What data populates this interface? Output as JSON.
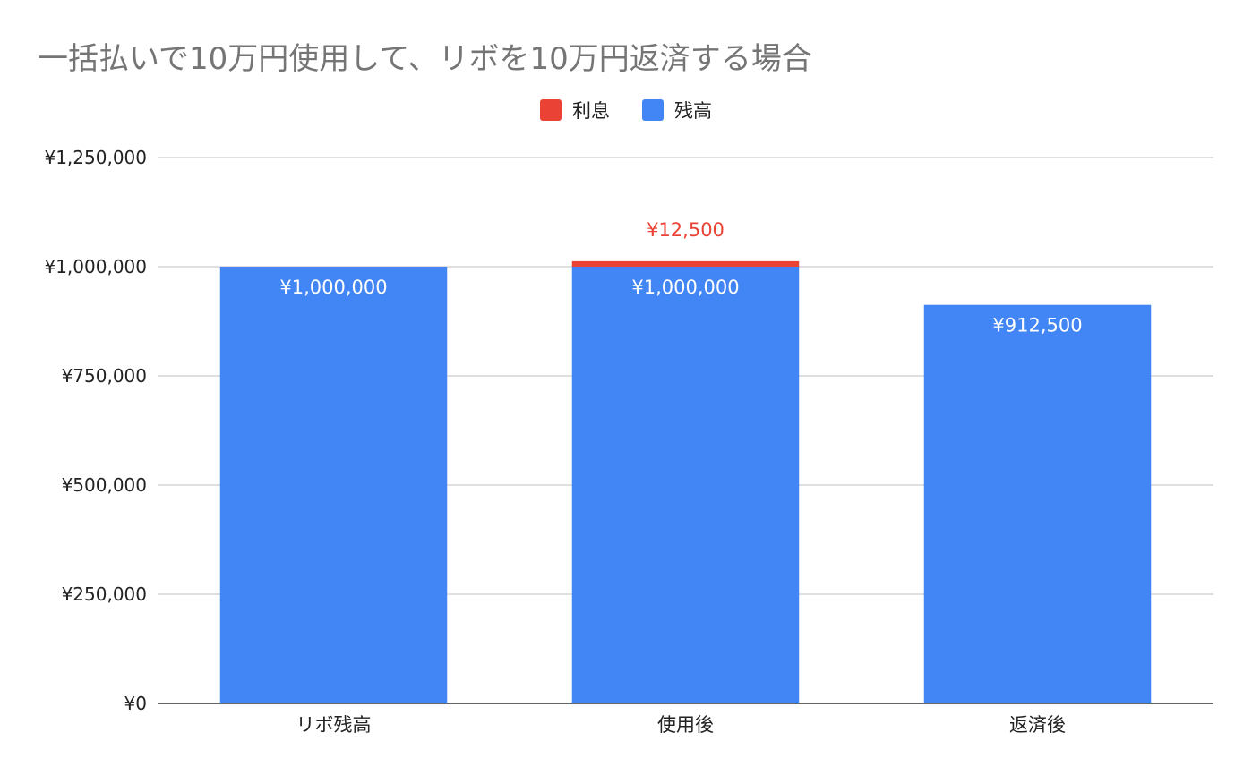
{
  "chart_data": {
    "type": "bar",
    "stacked": true,
    "title": "一括払いで10万円使用して、リボを10万円返済する場合",
    "categories": [
      "リボ残高",
      "使用後",
      "返済後"
    ],
    "series": [
      {
        "name": "残高",
        "color": "#4285f4",
        "values": [
          1000000,
          1000000,
          912500
        ],
        "labels": [
          "¥1,000,000",
          "¥1,000,000",
          "¥912,500"
        ],
        "label_color": "#ffffff"
      },
      {
        "name": "利息",
        "color": "#ea4335",
        "values": [
          0,
          12500,
          0
        ],
        "labels": [
          "",
          "¥12,500",
          ""
        ],
        "label_color": "#ea4335"
      }
    ],
    "legend": {
      "position": "top-center",
      "order": [
        "利息",
        "残高"
      ]
    },
    "ylim": [
      0,
      1250000
    ],
    "yticks": [
      0,
      250000,
      500000,
      750000,
      1000000,
      1250000
    ],
    "ytick_labels": [
      "¥0",
      "¥250,000",
      "¥500,000",
      "¥750,000",
      "¥1,000,000",
      "¥1,250,000"
    ],
    "grid": true,
    "xlabel": "",
    "ylabel": ""
  }
}
